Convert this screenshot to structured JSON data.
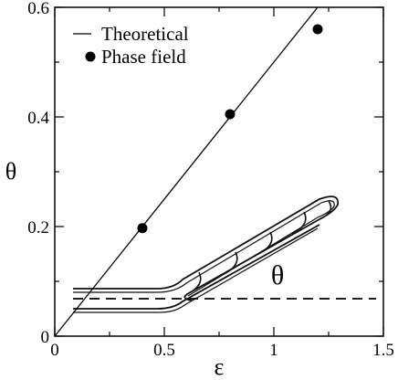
{
  "chart_data": {
    "type": "scatter",
    "xlabel": "ε",
    "ylabel": "θ",
    "xlim": [
      0,
      1.5
    ],
    "ylim": [
      0,
      0.6
    ],
    "x_ticks": [
      {
        "value": 0,
        "label": "0"
      },
      {
        "value": 0.5,
        "label": "0.5"
      },
      {
        "value": 1.0,
        "label": "1"
      },
      {
        "value": 1.5,
        "label": "1.5"
      }
    ],
    "y_ticks": [
      {
        "value": 0,
        "label": "0"
      },
      {
        "value": 0.2,
        "label": "0.2"
      },
      {
        "value": 0.4,
        "label": "0.4"
      },
      {
        "value": 0.6,
        "label": "0.6"
      }
    ],
    "legend_position": "top-left",
    "series": [
      {
        "name": "Theoretical",
        "kind": "line",
        "x": [
          0,
          1.2
        ],
        "y": [
          0,
          0.6
        ]
      },
      {
        "name": "Phase field",
        "kind": "points",
        "x": [
          0.4,
          0.8,
          1.2
        ],
        "y": [
          0.197,
          0.405,
          0.56
        ]
      }
    ],
    "inset": {
      "label": "θ",
      "description_free": true
    }
  }
}
